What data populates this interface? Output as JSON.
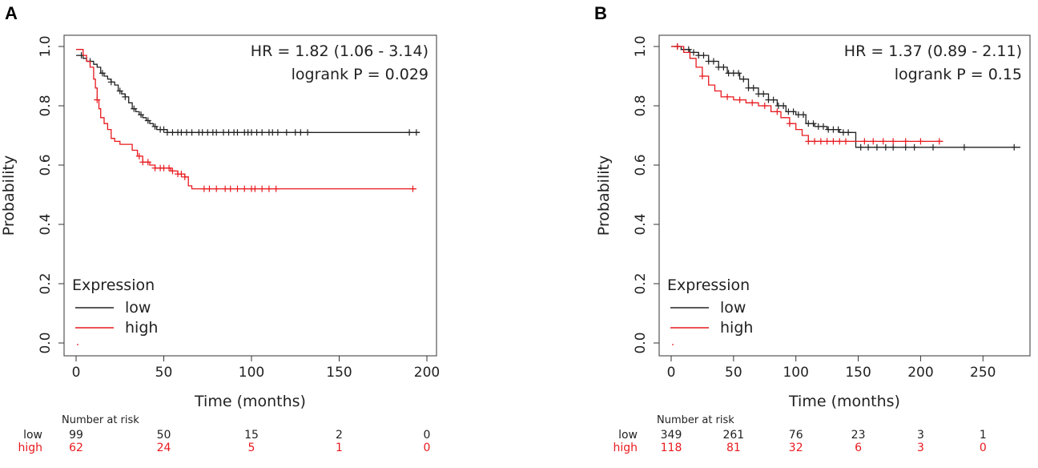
{
  "chart_data": [
    {
      "panel": "A",
      "type": "line",
      "title": "",
      "xlabel": "Time (months)",
      "ylabel": "Probability",
      "xlim": [
        0,
        200
      ],
      "ylim": [
        0,
        1
      ],
      "xticks": [
        0,
        50,
        100,
        150,
        200
      ],
      "yticks": [
        0.0,
        0.2,
        0.4,
        0.6,
        0.8,
        1.0
      ],
      "annotations": [
        "HR = 1.82 (1.06 - 3.14)",
        "logrank P = 0.029"
      ],
      "legend": {
        "title": "Expression",
        "position": "bottom-left",
        "entries": [
          "low",
          "high"
        ]
      },
      "series": [
        {
          "name": "low",
          "color": "#222222",
          "points": [
            [
              0,
              0.97
            ],
            [
              2,
              0.97
            ],
            [
              4,
              0.96
            ],
            [
              6,
              0.95
            ],
            [
              8,
              0.95
            ],
            [
              10,
              0.94
            ],
            [
              12,
              0.93
            ],
            [
              14,
              0.91
            ],
            [
              16,
              0.9
            ],
            [
              18,
              0.89
            ],
            [
              20,
              0.88
            ],
            [
              22,
              0.87
            ],
            [
              24,
              0.85
            ],
            [
              26,
              0.84
            ],
            [
              28,
              0.83
            ],
            [
              30,
              0.81
            ],
            [
              32,
              0.79
            ],
            [
              34,
              0.78
            ],
            [
              36,
              0.77
            ],
            [
              38,
              0.76
            ],
            [
              40,
              0.75
            ],
            [
              42,
              0.74
            ],
            [
              44,
              0.73
            ],
            [
              46,
              0.72
            ],
            [
              48,
              0.72
            ],
            [
              50,
              0.72
            ],
            [
              52,
              0.71
            ],
            [
              55,
              0.71
            ],
            [
              60,
              0.71
            ],
            [
              196,
              0.71
            ]
          ],
          "censor": [
            3,
            8,
            15,
            20,
            25,
            28,
            33,
            37,
            41,
            45,
            48,
            50,
            52,
            55,
            58,
            60,
            63,
            66,
            70,
            72,
            75,
            78,
            80,
            84,
            87,
            90,
            92,
            96,
            98,
            100,
            103,
            106,
            110,
            112,
            115,
            120,
            125,
            128,
            132,
            190,
            194
          ]
        },
        {
          "name": "high",
          "color": "#e8191e",
          "points": [
            [
              0,
              0.99
            ],
            [
              4,
              0.97
            ],
            [
              6,
              0.95
            ],
            [
              8,
              0.93
            ],
            [
              10,
              0.89
            ],
            [
              11,
              0.86
            ],
            [
              12,
              0.82
            ],
            [
              13,
              0.79
            ],
            [
              14,
              0.76
            ],
            [
              16,
              0.74
            ],
            [
              18,
              0.72
            ],
            [
              20,
              0.69
            ],
            [
              22,
              0.68
            ],
            [
              25,
              0.67
            ],
            [
              28,
              0.67
            ],
            [
              32,
              0.65
            ],
            [
              35,
              0.63
            ],
            [
              38,
              0.61
            ],
            [
              42,
              0.6
            ],
            [
              45,
              0.59
            ],
            [
              50,
              0.59
            ],
            [
              54,
              0.58
            ],
            [
              58,
              0.57
            ],
            [
              62,
              0.56
            ],
            [
              64,
              0.53
            ],
            [
              66,
              0.52
            ],
            [
              194,
              0.52
            ]
          ],
          "censor": [
            12,
            36,
            38,
            41,
            45,
            48,
            50,
            53,
            55,
            58,
            60,
            62,
            73,
            76,
            80,
            85,
            88,
            92,
            96,
            100,
            102,
            106,
            110,
            114,
            192
          ]
        }
      ],
      "risk_table": {
        "title": "Number at risk",
        "times": [
          0,
          50,
          100,
          150,
          200
        ],
        "rows": [
          {
            "label": "low",
            "values": [
              "99",
              "50",
              "15",
              "2",
              "0"
            ]
          },
          {
            "label": "high",
            "values": [
              "62",
              "24",
              "5",
              "1",
              "0"
            ]
          }
        ]
      }
    },
    {
      "panel": "B",
      "type": "line",
      "title": "",
      "xlabel": "Time (months)",
      "ylabel": "Probability",
      "xlim": [
        0,
        280
      ],
      "ylim": [
        0,
        1
      ],
      "xticks": [
        0,
        50,
        100,
        150,
        200,
        250
      ],
      "yticks": [
        0.0,
        0.2,
        0.4,
        0.6,
        0.8,
        1.0
      ],
      "annotations": [
        "HR = 1.37 (0.89 - 2.11)",
        "logrank P = 0.15"
      ],
      "legend": {
        "title": "Expression",
        "position": "bottom-left",
        "entries": [
          "low",
          "high"
        ]
      },
      "series": [
        {
          "name": "low",
          "color": "#222222",
          "points": [
            [
              0,
              1.0
            ],
            [
              8,
              0.99
            ],
            [
              15,
              0.98
            ],
            [
              22,
              0.97
            ],
            [
              30,
              0.95
            ],
            [
              38,
              0.93
            ],
            [
              45,
              0.91
            ],
            [
              55,
              0.89
            ],
            [
              62,
              0.86
            ],
            [
              70,
              0.84
            ],
            [
              78,
              0.82
            ],
            [
              85,
              0.8
            ],
            [
              92,
              0.78
            ],
            [
              100,
              0.77
            ],
            [
              108,
              0.74
            ],
            [
              115,
              0.73
            ],
            [
              125,
              0.72
            ],
            [
              135,
              0.71
            ],
            [
              145,
              0.71
            ],
            [
              148,
              0.66
            ],
            [
              280,
              0.66
            ]
          ],
          "censor": [
            5,
            10,
            14,
            18,
            22,
            26,
            30,
            34,
            38,
            42,
            46,
            50,
            54,
            58,
            62,
            66,
            70,
            74,
            78,
            82,
            86,
            90,
            94,
            98,
            102,
            106,
            110,
            114,
            118,
            122,
            126,
            130,
            134,
            138,
            142,
            152,
            158,
            165,
            172,
            178,
            188,
            195,
            210,
            235,
            275
          ]
        },
        {
          "name": "high",
          "color": "#e8191e",
          "points": [
            [
              0,
              1.0
            ],
            [
              10,
              0.98
            ],
            [
              15,
              0.96
            ],
            [
              20,
              0.93
            ],
            [
              25,
              0.9
            ],
            [
              30,
              0.87
            ],
            [
              35,
              0.85
            ],
            [
              40,
              0.83
            ],
            [
              50,
              0.82
            ],
            [
              60,
              0.81
            ],
            [
              70,
              0.8
            ],
            [
              80,
              0.78
            ],
            [
              88,
              0.76
            ],
            [
              95,
              0.74
            ],
            [
              100,
              0.72
            ],
            [
              105,
              0.7
            ],
            [
              110,
              0.68
            ],
            [
              150,
              0.68
            ],
            [
              218,
              0.68
            ]
          ],
          "censor": [
            5,
            25,
            45,
            55,
            65,
            75,
            85,
            95,
            110,
            115,
            120,
            125,
            130,
            135,
            140,
            155,
            162,
            170,
            178,
            188,
            200,
            215
          ]
        }
      ],
      "risk_table": {
        "title": "Number at risk",
        "times": [
          0,
          50,
          100,
          150,
          200,
          250
        ],
        "rows": [
          {
            "label": "low",
            "values": [
              "349",
              "261",
              "76",
              "23",
              "3",
              "1"
            ]
          },
          {
            "label": "high",
            "values": [
              "118",
              "81",
              "32",
              "6",
              "3",
              "0"
            ]
          }
        ]
      }
    }
  ]
}
